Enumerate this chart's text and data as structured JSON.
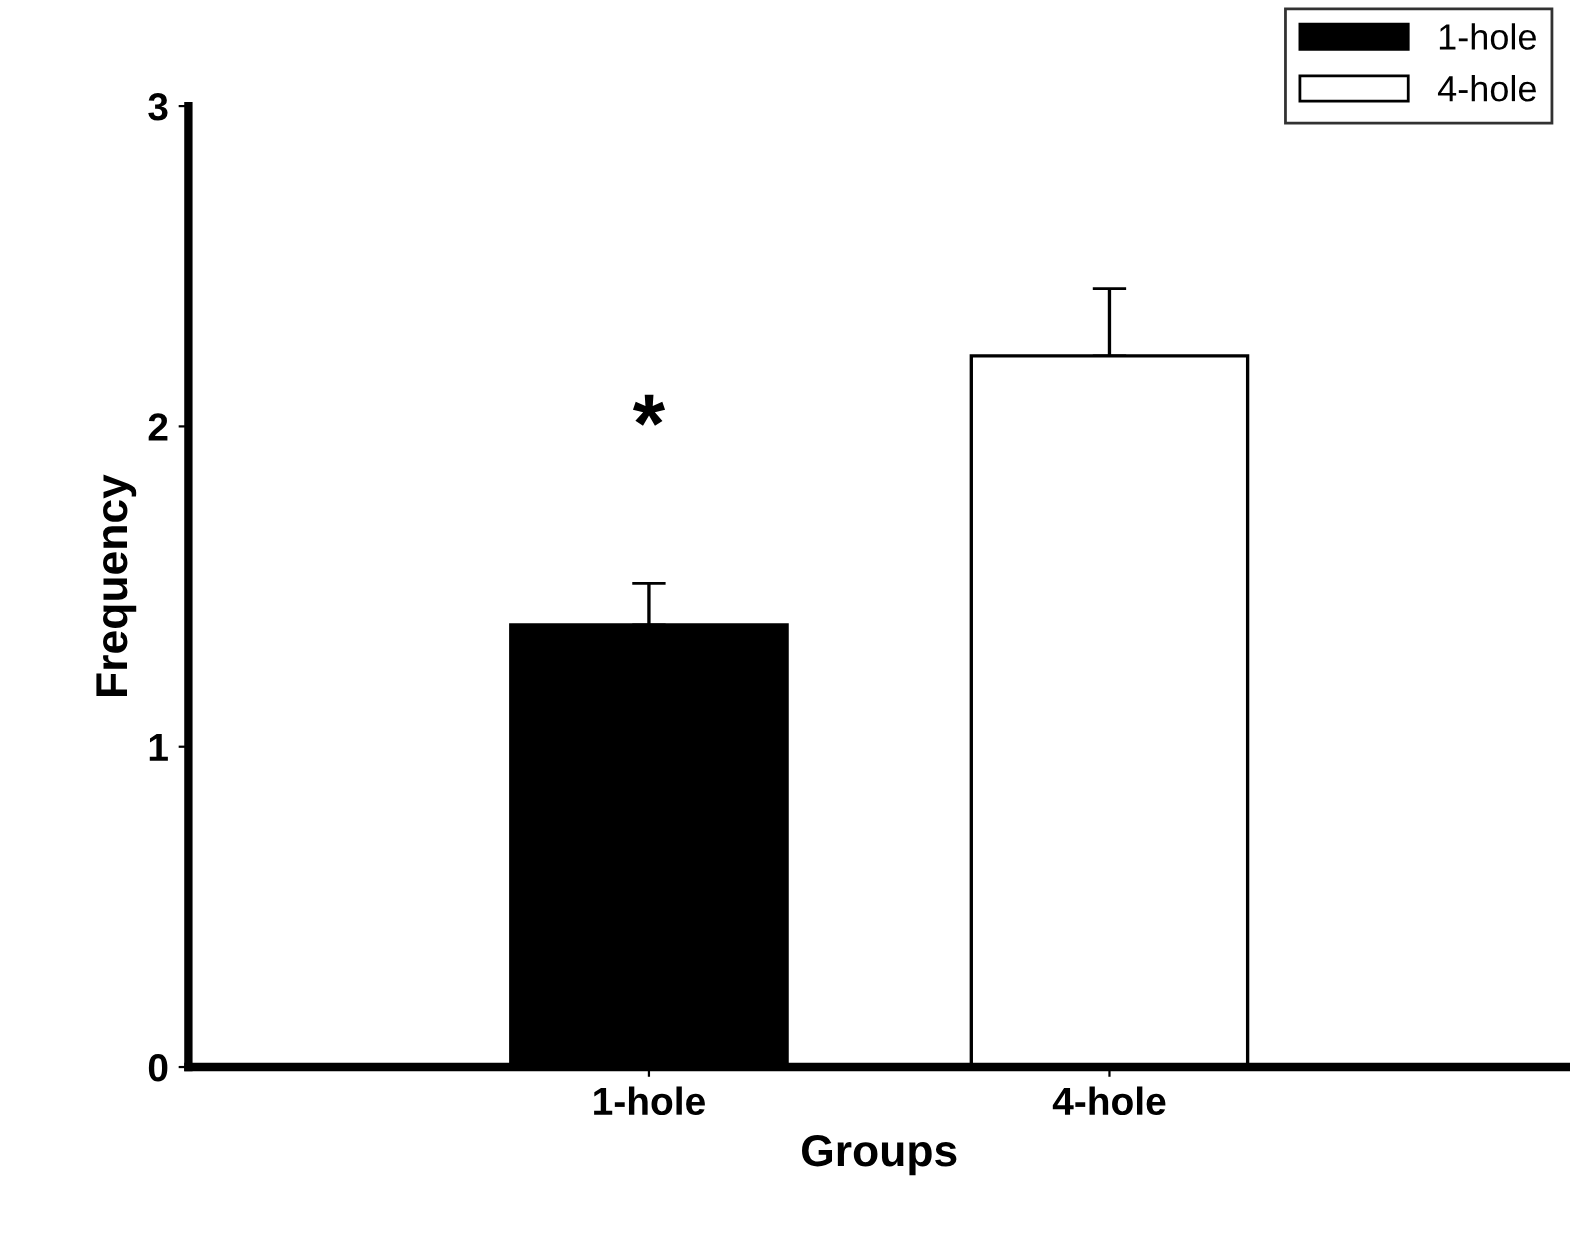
{
  "chart_data": {
    "type": "bar",
    "xlabel": "Groups",
    "ylabel": "Frequency",
    "categories": [
      "1-hole",
      "4-hole"
    ],
    "series": [
      {
        "name": "1-hole",
        "color": "#000000",
        "values": [
          1.38,
          null
        ],
        "errors": [
          [
            1.38,
            1.51
          ],
          null
        ]
      },
      {
        "name": "4-hole",
        "color": "#ffffff",
        "values": [
          null,
          2.22
        ],
        "errors": [
          null,
          [
            2.22,
            2.43
          ]
        ]
      }
    ],
    "ylim": [
      0,
      3
    ],
    "yticks": [
      0,
      1,
      2,
      3
    ],
    "grid": false,
    "legend": "top right",
    "annotations": [
      "*"
    ]
  }
}
